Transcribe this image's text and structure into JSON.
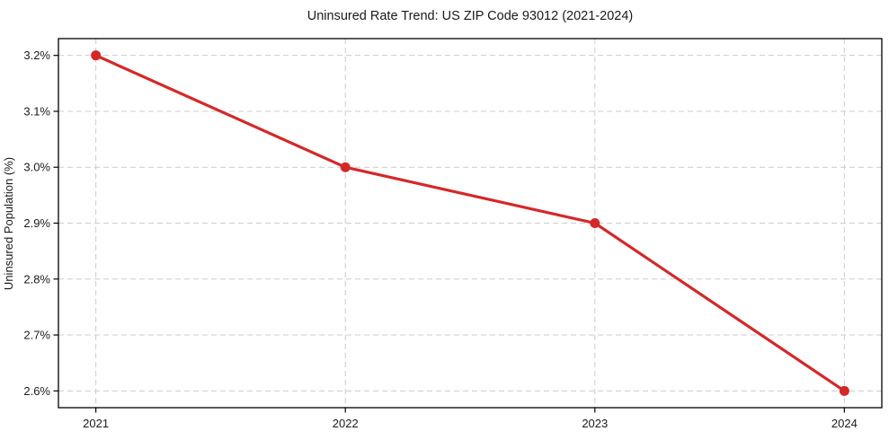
{
  "chart_data": {
    "type": "line",
    "title": "Uninsured Rate Trend: US ZIP Code 93012 (2021-2024)",
    "xlabel": "",
    "ylabel": "Uninsured Population (%)",
    "x": [
      2021,
      2022,
      2023,
      2024
    ],
    "values": [
      3.2,
      3.0,
      2.9,
      2.6
    ],
    "x_tick_labels": [
      "2021",
      "2022",
      "2023",
      "2024"
    ],
    "y_ticks": [
      2.6,
      2.7,
      2.8,
      2.9,
      3.0,
      3.1,
      3.2
    ],
    "y_tick_labels": [
      "2.6%",
      "2.7%",
      "2.8%",
      "2.9%",
      "3.0%",
      "3.1%",
      "3.2%"
    ],
    "xlim": [
      2020.85,
      2024.15
    ],
    "ylim": [
      2.57,
      3.23
    ],
    "grid": true,
    "grid_style": "dashed",
    "legend_position": "none",
    "line_color": "#d62728",
    "marker": "circle",
    "grid_color": "#cccccc",
    "spine_color": "#000000",
    "text_color": "#1a1a1a",
    "background_color": "#ffffff"
  }
}
